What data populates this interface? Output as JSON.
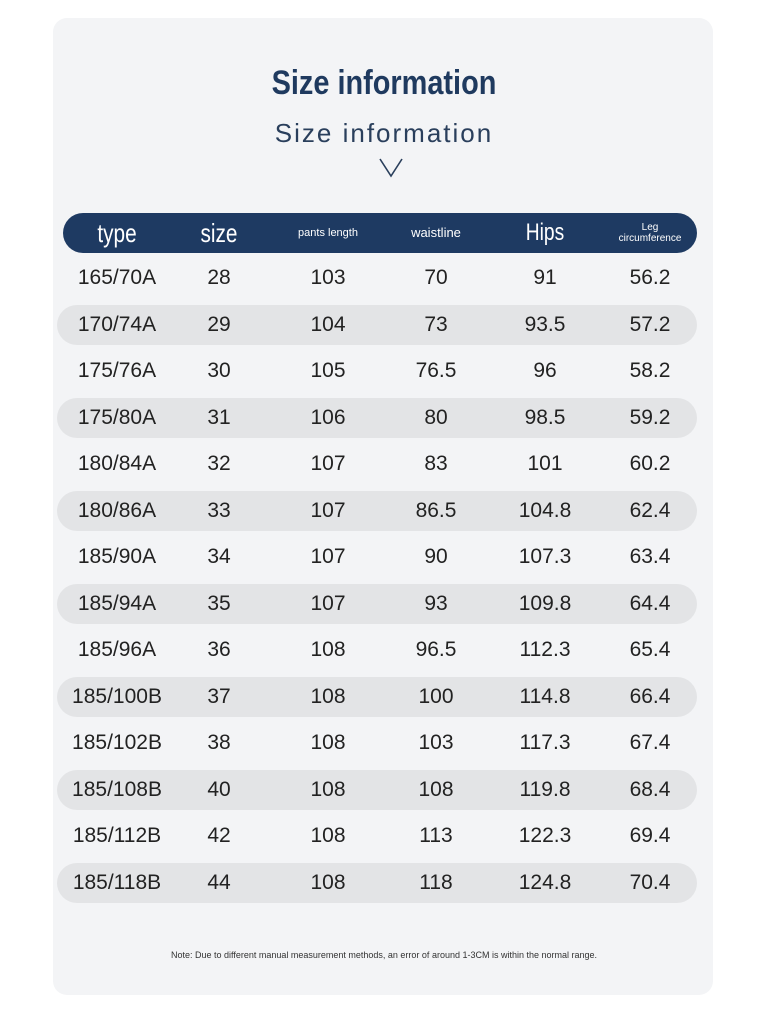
{
  "header": {
    "title": "Size information",
    "subtitle": "Size information"
  },
  "table": {
    "columns": [
      "type",
      "size",
      "pants length",
      "waistline",
      "Hips",
      "Leg circumference"
    ],
    "rows": [
      [
        "165/70A",
        "28",
        "103",
        "70",
        "91",
        "56.2"
      ],
      [
        "170/74A",
        "29",
        "104",
        "73",
        "93.5",
        "57.2"
      ],
      [
        "175/76A",
        "30",
        "105",
        "76.5",
        "96",
        "58.2"
      ],
      [
        "175/80A",
        "31",
        "106",
        "80",
        "98.5",
        "59.2"
      ],
      [
        "180/84A",
        "32",
        "107",
        "83",
        "101",
        "60.2"
      ],
      [
        "180/86A",
        "33",
        "107",
        "86.5",
        "104.8",
        "62.4"
      ],
      [
        "185/90A",
        "34",
        "107",
        "90",
        "107.3",
        "63.4"
      ],
      [
        "185/94A",
        "35",
        "107",
        "93",
        "109.8",
        "64.4"
      ],
      [
        "185/96A",
        "36",
        "108",
        "96.5",
        "112.3",
        "65.4"
      ],
      [
        "185/100B",
        "37",
        "108",
        "100",
        "114.8",
        "66.4"
      ],
      [
        "185/102B",
        "38",
        "108",
        "103",
        "117.3",
        "67.4"
      ],
      [
        "185/108B",
        "40",
        "108",
        "108",
        "119.8",
        "68.4"
      ],
      [
        "185/112B",
        "42",
        "108",
        "113",
        "122.3",
        "69.4"
      ],
      [
        "185/118B",
        "44",
        "108",
        "118",
        "124.8",
        "70.4"
      ]
    ]
  },
  "note": "Note: Due to different manual measurement methods, an error of around 1-3CM is within the normal range."
}
